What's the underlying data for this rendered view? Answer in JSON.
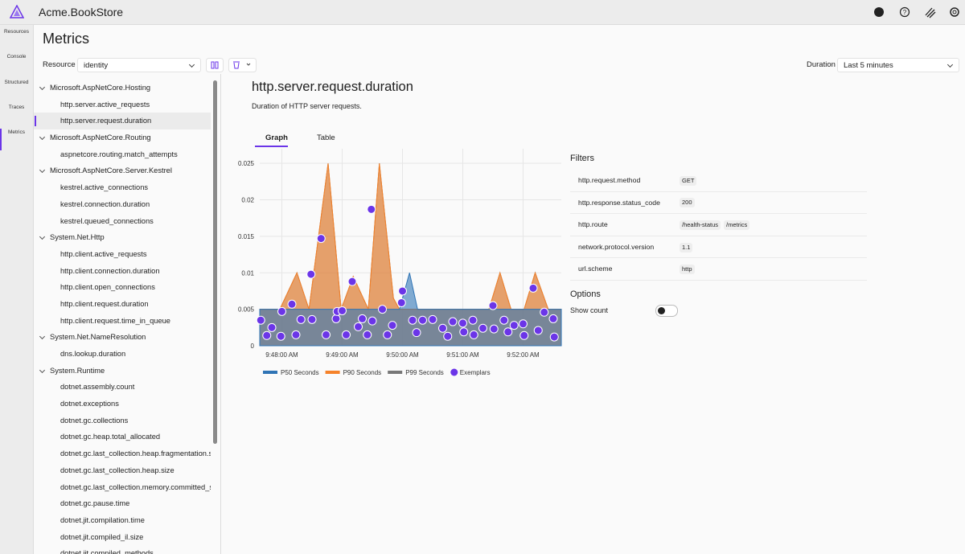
{
  "header": {
    "title": "Acme.BookStore"
  },
  "nav": [
    {
      "label": "Resources",
      "selected": false
    },
    {
      "label": "Console",
      "selected": false
    },
    {
      "label": "Structured",
      "selected": false
    },
    {
      "label": "Traces",
      "selected": false
    },
    {
      "label": "Metrics",
      "selected": true
    }
  ],
  "page": {
    "title": "Metrics",
    "resource_label": "Resource",
    "resource_value": "identity",
    "duration_label": "Duration",
    "duration_value": "Last 5 minutes"
  },
  "tree": [
    {
      "group": "Microsoft.AspNetCore.Hosting",
      "selected_item": 1,
      "items": [
        "http.server.active_requests",
        "http.server.request.duration"
      ]
    },
    {
      "group": "Microsoft.AspNetCore.Routing",
      "items": [
        "aspnetcore.routing.match_attempts"
      ]
    },
    {
      "group": "Microsoft.AspNetCore.Server.Kestrel",
      "items": [
        "kestrel.active_connections",
        "kestrel.connection.duration",
        "kestrel.queued_connections"
      ]
    },
    {
      "group": "System.Net.Http",
      "items": [
        "http.client.active_requests",
        "http.client.connection.duration",
        "http.client.open_connections",
        "http.client.request.duration",
        "http.client.request.time_in_queue"
      ]
    },
    {
      "group": "System.Net.NameResolution",
      "items": [
        "dns.lookup.duration"
      ]
    },
    {
      "group": "System.Runtime",
      "items": [
        "dotnet.assembly.count",
        "dotnet.exceptions",
        "dotnet.gc.collections",
        "dotnet.gc.heap.total_allocated",
        "dotnet.gc.last_collection.heap.fragmentation.size",
        "dotnet.gc.last_collection.heap.size",
        "dotnet.gc.last_collection.memory.committed_size",
        "dotnet.gc.pause.time",
        "dotnet.jit.compilation.time",
        "dotnet.jit.compiled_il.size",
        "dotnet.jit.compiled_methods"
      ]
    }
  ],
  "metric": {
    "title": "http.server.request.duration",
    "description": "Duration of HTTP server requests.",
    "tabs": [
      "Graph",
      "Table"
    ],
    "selected_tab": "Graph"
  },
  "chart_data": {
    "type": "area",
    "x": [
      "9:47:38 AM",
      "9:47:58 AM",
      "9:48:15 AM",
      "9:48:27 AM",
      "9:48:46 AM",
      "9:48:59 AM",
      "9:49:11 AM",
      "9:49:26 AM",
      "9:49:37 AM",
      "9:49:51 AM",
      "9:49:57 AM",
      "9:50:07 AM",
      "9:50:15 AM",
      "9:51:26 AM",
      "9:51:37 AM",
      "9:51:48 AM",
      "9:52:01 AM",
      "9:52:12 AM",
      "9:52:25 AM",
      "9:52:38 AM"
    ],
    "series": [
      {
        "name": "P99 Seconds",
        "color": "#777777",
        "values": [
          0.005,
          0.005,
          0.01,
          0.005,
          0.025,
          0.005,
          0.0095,
          0.005,
          0.025,
          0.0065,
          0.005,
          0.005,
          0.005,
          0.005,
          0.01,
          0.005,
          0.005,
          0.01,
          0.005,
          0.005
        ]
      },
      {
        "name": "P90 Seconds",
        "color": "#f5822a",
        "values": [
          0.005,
          0.005,
          0.01,
          0.005,
          0.025,
          0.005,
          0.0095,
          0.005,
          0.025,
          0.0065,
          0.005,
          0.005,
          0.005,
          0.005,
          0.01,
          0.005,
          0.005,
          0.01,
          0.005,
          0.005
        ]
      },
      {
        "name": "P50 Seconds",
        "color": "#2f74b5",
        "values": [
          0.005,
          0.005,
          0.005,
          0.005,
          0.005,
          0.005,
          0.005,
          0.005,
          0.005,
          0.005,
          0.005,
          0.01,
          0.005,
          0.005,
          0.005,
          0.005,
          0.005,
          0.005,
          0.005,
          0.005
        ]
      },
      {
        "name": "Exemplars",
        "color": "#6b35e8",
        "type": "scatter",
        "x": [
          "9:47:39 AM",
          "9:47:45 AM",
          "9:47:50 AM",
          "9:47:59 AM",
          "9:48:00 AM",
          "9:48:10 AM",
          "9:48:14 AM",
          "9:48:19 AM",
          "9:48:30 AM",
          "9:48:29 AM",
          "9:48:39 AM",
          "9:48:44 AM",
          "9:48:54 AM",
          "9:48:55 AM",
          "9:49:00 AM",
          "9:49:04 AM",
          "9:49:10 AM",
          "9:49:16 AM",
          "9:49:20 AM",
          "9:49:25 AM",
          "9:49:29 AM",
          "9:49:30 AM",
          "9:49:40 AM",
          "9:49:45 AM",
          "9:49:50 AM",
          "9:49:59 AM",
          "9:50:00 AM",
          "9:50:10 AM",
          "9:50:14 AM",
          "9:50:20 AM",
          "9:50:30 AM",
          "9:50:40 AM",
          "9:50:45 AM",
          "9:50:50 AM",
          "9:51:00 AM",
          "9:51:01 AM",
          "9:51:10 AM",
          "9:51:11 AM",
          "9:51:20 AM",
          "9:51:30 AM",
          "9:51:31 AM",
          "9:51:41 AM",
          "9:51:45 AM",
          "9:51:51 AM",
          "9:52:00 AM",
          "9:52:01 AM",
          "9:52:10 AM",
          "9:52:15 AM",
          "9:52:21 AM",
          "9:52:30 AM",
          "9:52:31 AM"
        ],
        "values": [
          0.0035,
          0.0014,
          0.0025,
          0.0013,
          0.0047,
          0.0057,
          0.0015,
          0.0036,
          0.0036,
          0.0098,
          0.0147,
          0.0015,
          0.0037,
          0.0047,
          0.0048,
          0.0015,
          0.0088,
          0.0026,
          0.0037,
          0.0015,
          0.0187,
          0.0034,
          0.005,
          0.0015,
          0.0028,
          0.0059,
          0.0075,
          0.0035,
          0.0018,
          0.0035,
          0.0036,
          0.0024,
          0.0013,
          0.0033,
          0.0031,
          0.0019,
          0.0035,
          0.0015,
          0.0024,
          0.0055,
          0.0023,
          0.0035,
          0.0019,
          0.0028,
          0.003,
          0.0014,
          0.0079,
          0.0021,
          0.0046,
          0.0037,
          0.0012
        ]
      }
    ],
    "xlim": [
      "9:47:38 AM",
      "9:52:38 AM"
    ],
    "xticks": [
      "9:48:00 AM",
      "9:49:00 AM",
      "9:50:00 AM",
      "9:51:00 AM",
      "9:52:00 AM"
    ],
    "ylim": [
      0,
      0.027
    ],
    "yticks": [
      0,
      0.005,
      0.01,
      0.015,
      0.02,
      0.025
    ],
    "grid": true,
    "legend": "bottom"
  },
  "filters": {
    "title": "Filters",
    "rows": [
      {
        "name": "http.request.method",
        "values": [
          "GET"
        ]
      },
      {
        "name": "http.response.status_code",
        "values": [
          "200"
        ]
      },
      {
        "name": "http.route",
        "values": [
          "/health-status",
          "/metrics"
        ]
      },
      {
        "name": "network.protocol.version",
        "values": [
          "1.1"
        ]
      },
      {
        "name": "url.scheme",
        "values": [
          "http"
        ]
      }
    ]
  },
  "options": {
    "title": "Options",
    "show_count": {
      "label": "Show count",
      "checked": false
    }
  }
}
